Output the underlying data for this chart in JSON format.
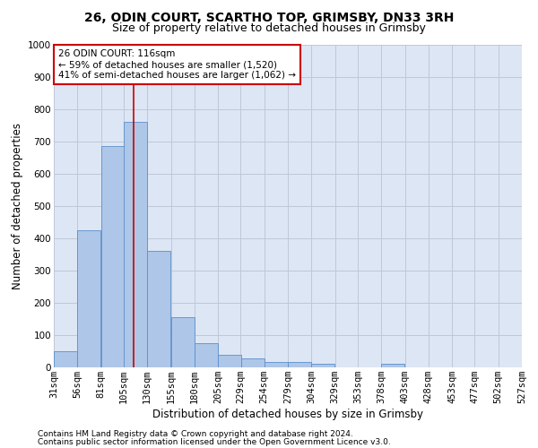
{
  "title1": "26, ODIN COURT, SCARTHO TOP, GRIMSBY, DN33 3RH",
  "title2": "Size of property relative to detached houses in Grimsby",
  "xlabel": "Distribution of detached houses by size in Grimsby",
  "ylabel": "Number of detached properties",
  "footnote1": "Contains HM Land Registry data © Crown copyright and database right 2024.",
  "footnote2": "Contains public sector information licensed under the Open Government Licence v3.0.",
  "annotation_title": "26 ODIN COURT: 116sqm",
  "annotation_line1": "← 59% of detached houses are smaller (1,520)",
  "annotation_line2": "41% of semi-detached houses are larger (1,062) →",
  "bar_color": "#aec6e8",
  "bar_edge_color": "#5b8fc9",
  "vline_color": "#cc0000",
  "annotation_box_color": "#cc0000",
  "bins": [
    31,
    56,
    81,
    105,
    130,
    155,
    180,
    205,
    229,
    254,
    279,
    304,
    329,
    353,
    378,
    403,
    428,
    453,
    477,
    502,
    527
  ],
  "values": [
    50,
    425,
    685,
    760,
    360,
    155,
    75,
    40,
    28,
    17,
    17,
    10,
    0,
    0,
    10,
    0,
    0,
    0,
    0,
    0
  ],
  "property_size": 116,
  "ylim": [
    0,
    1000
  ],
  "yticks": [
    0,
    100,
    200,
    300,
    400,
    500,
    600,
    700,
    800,
    900,
    1000
  ],
  "background_color": "#ffffff",
  "grid_color": "#c0c8d8",
  "ax_bg_color": "#dce6f5",
  "title1_fontsize": 10,
  "title2_fontsize": 9,
  "axis_label_fontsize": 8.5,
  "tick_fontsize": 7.5,
  "footnote_fontsize": 6.5,
  "annotation_fontsize": 7.5
}
